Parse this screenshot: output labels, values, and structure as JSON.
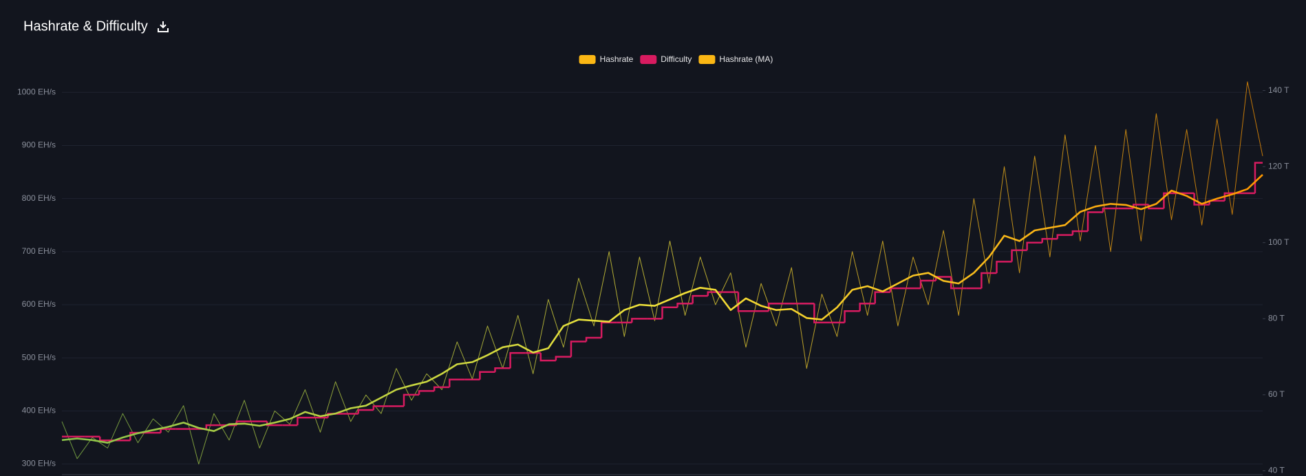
{
  "chart_data": {
    "type": "line",
    "title": "Hashrate & Difficulty",
    "categories": [
      null,
      null,
      null,
      null,
      null,
      null,
      null,
      null,
      null,
      null,
      null,
      null,
      null,
      null,
      null,
      null,
      null,
      null,
      null,
      null,
      null,
      null,
      null,
      null,
      null,
      null,
      null,
      null,
      null,
      null,
      null,
      null,
      null,
      null,
      null,
      null,
      null,
      null,
      null,
      null,
      null,
      null,
      null,
      null,
      null,
      null,
      null,
      null,
      null,
      null,
      null,
      null,
      null,
      null,
      null,
      null,
      null,
      null,
      null,
      null,
      null,
      null,
      null,
      null,
      null,
      null,
      null,
      null,
      null,
      null,
      null,
      null,
      null,
      null,
      null,
      null,
      null,
      null,
      null,
      null
    ],
    "gradient_colors": [
      "#8bc34a",
      "#f2e33a",
      "#ff9800"
    ],
    "series": [
      {
        "name": "Hashrate",
        "color": "#fbb714",
        "values": [
          380,
          310,
          350,
          330,
          395,
          340,
          385,
          360,
          410,
          300,
          395,
          345,
          420,
          330,
          400,
          375,
          440,
          360,
          455,
          380,
          430,
          395,
          480,
          420,
          470,
          440,
          530,
          460,
          560,
          480,
          580,
          470,
          610,
          520,
          650,
          560,
          700,
          540,
          690,
          570,
          720,
          580,
          690,
          600,
          660,
          520,
          640,
          560,
          670,
          480,
          620,
          540,
          700,
          580,
          720,
          560,
          690,
          600,
          740,
          580,
          800,
          640,
          860,
          660,
          880,
          690,
          920,
          720,
          900,
          700,
          930,
          720,
          960,
          760,
          930,
          750,
          950,
          770,
          1020,
          880
        ]
      },
      {
        "name": "Difficulty",
        "color": "#d81b60",
        "axis": "y2",
        "values": [
          49,
          49,
          49,
          48,
          48,
          50,
          50,
          51,
          51,
          51,
          52,
          52,
          53,
          53,
          52,
          52,
          54,
          54,
          55,
          55,
          56,
          57,
          57,
          60,
          61,
          62,
          64,
          64,
          66,
          67,
          71,
          71,
          69,
          70,
          74,
          75,
          79,
          79,
          80,
          80,
          83,
          84,
          86,
          87,
          87,
          82,
          82,
          84,
          84,
          84,
          79,
          79,
          82,
          84,
          87,
          88,
          88,
          90,
          91,
          88,
          88,
          92,
          95,
          98,
          100,
          101,
          102,
          103,
          108,
          109,
          109,
          110,
          109,
          113,
          113,
          110,
          111,
          113,
          113,
          121
        ]
      },
      {
        "name": "Hashrate (MA)",
        "color": "#fbb714",
        "values": [
          345,
          348,
          345,
          340,
          350,
          358,
          364,
          370,
          378,
          368,
          362,
          375,
          376,
          372,
          378,
          385,
          398,
          390,
          395,
          405,
          410,
          425,
          440,
          448,
          455,
          470,
          488,
          492,
          505,
          520,
          525,
          510,
          518,
          560,
          572,
          570,
          568,
          590,
          600,
          598,
          610,
          622,
          632,
          628,
          590,
          612,
          598,
          590,
          592,
          575,
          572,
          595,
          628,
          635,
          625,
          640,
          655,
          660,
          645,
          640,
          660,
          690,
          730,
          720,
          740,
          745,
          750,
          775,
          785,
          790,
          788,
          780,
          790,
          815,
          805,
          790,
          800,
          808,
          818,
          845
        ]
      }
    ],
    "ylim": [
      280,
      1025
    ],
    "yticks": [
      {
        "value": 300,
        "label": "300 EH/s"
      },
      {
        "value": 400,
        "label": "400 EH/s"
      },
      {
        "value": 500,
        "label": "500 EH/s"
      },
      {
        "value": 600,
        "label": "600 EH/s"
      },
      {
        "value": 700,
        "label": "700 EH/s"
      },
      {
        "value": 800,
        "label": "800 EH/s"
      },
      {
        "value": 900,
        "label": "900 EH/s"
      },
      {
        "value": 1000,
        "label": "1000 EH/s"
      }
    ],
    "y2lim": [
      39,
      143
    ],
    "y2ticks": [
      {
        "value": 40,
        "label": "40 T"
      },
      {
        "value": 60,
        "label": "60 T"
      },
      {
        "value": 80,
        "label": "80 T"
      },
      {
        "value": 100,
        "label": "100 T"
      },
      {
        "value": 120,
        "label": "120 T"
      },
      {
        "value": 140,
        "label": "140 T"
      }
    ],
    "grid": true
  }
}
